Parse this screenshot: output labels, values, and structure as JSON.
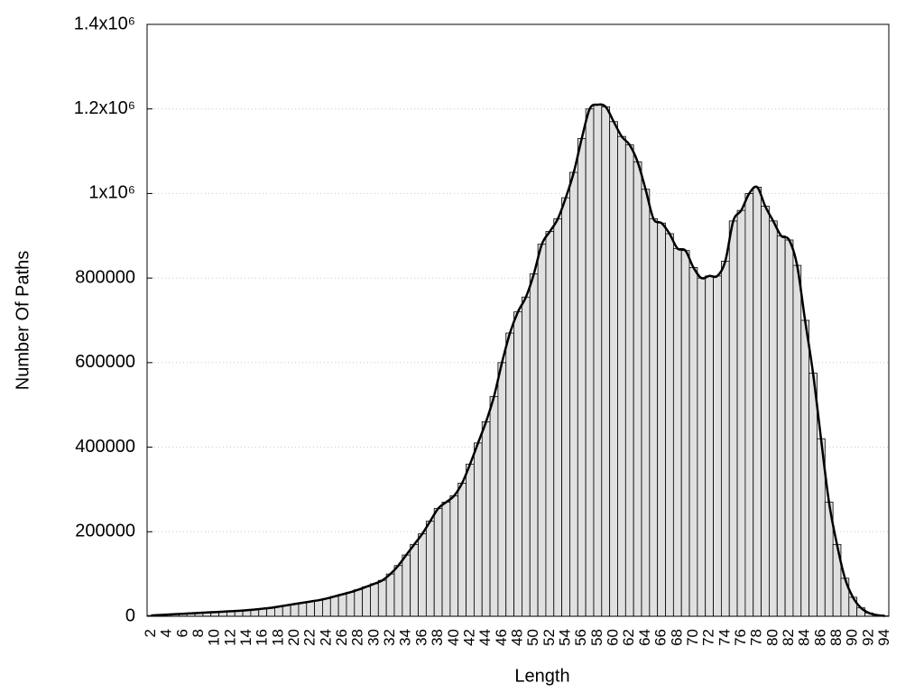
{
  "chart_data": {
    "type": "bar",
    "xlabel": "Length",
    "ylabel": "Number Of Paths",
    "categories": [
      2,
      null,
      4,
      null,
      6,
      null,
      8,
      null,
      10,
      null,
      12,
      null,
      14,
      null,
      16,
      null,
      18,
      null,
      20,
      null,
      22,
      null,
      24,
      null,
      26,
      null,
      28,
      null,
      30,
      null,
      32,
      null,
      34,
      null,
      36,
      null,
      38,
      null,
      40,
      null,
      42,
      null,
      44,
      null,
      46,
      null,
      48,
      null,
      50,
      null,
      52,
      null,
      54,
      null,
      56,
      null,
      58,
      null,
      60,
      null,
      62,
      null,
      64,
      null,
      66,
      null,
      68,
      null,
      70,
      null,
      72,
      null,
      74,
      null,
      76,
      null,
      78,
      null,
      80,
      null,
      82,
      null,
      84,
      null,
      86,
      null,
      88,
      null,
      90,
      null,
      92,
      null,
      94
    ],
    "values": [
      2000,
      3000,
      4000,
      5000,
      6000,
      7000,
      8000,
      9000,
      10000,
      11000,
      12000,
      13000,
      14500,
      16000,
      18000,
      20000,
      23000,
      26000,
      29000,
      32000,
      35000,
      38000,
      42000,
      47000,
      52000,
      57000,
      63000,
      70000,
      77000,
      85000,
      100000,
      120000,
      145000,
      170000,
      195000,
      225000,
      255000,
      270000,
      285000,
      315000,
      360000,
      410000,
      460000,
      520000,
      600000,
      670000,
      720000,
      755000,
      810000,
      880000,
      910000,
      940000,
      990000,
      1050000,
      1130000,
      1200000,
      1210000,
      1205000,
      1170000,
      1135000,
      1115000,
      1075000,
      1010000,
      940000,
      930000,
      905000,
      870000,
      865000,
      825000,
      800000,
      805000,
      805000,
      840000,
      935000,
      960000,
      1000000,
      1015000,
      970000,
      935000,
      900000,
      890000,
      830000,
      700000,
      575000,
      420000,
      270000,
      170000,
      90000,
      45000,
      20000,
      8000,
      3000,
      1000
    ],
    "color": "#e0e0e0",
    "edge_color": "#000000",
    "smooth_line": true,
    "line_color": "#000000",
    "ylim": [
      0,
      1400000
    ],
    "yticks": [
      0,
      200000,
      400000,
      600000,
      800000,
      {
        "value": 1000000,
        "label": "1x10⁶"
      },
      {
        "value": 1200000,
        "label": "1.2x10⁶"
      },
      {
        "value": 1400000,
        "label": "1.4x10⁶"
      }
    ],
    "grid": true
  }
}
